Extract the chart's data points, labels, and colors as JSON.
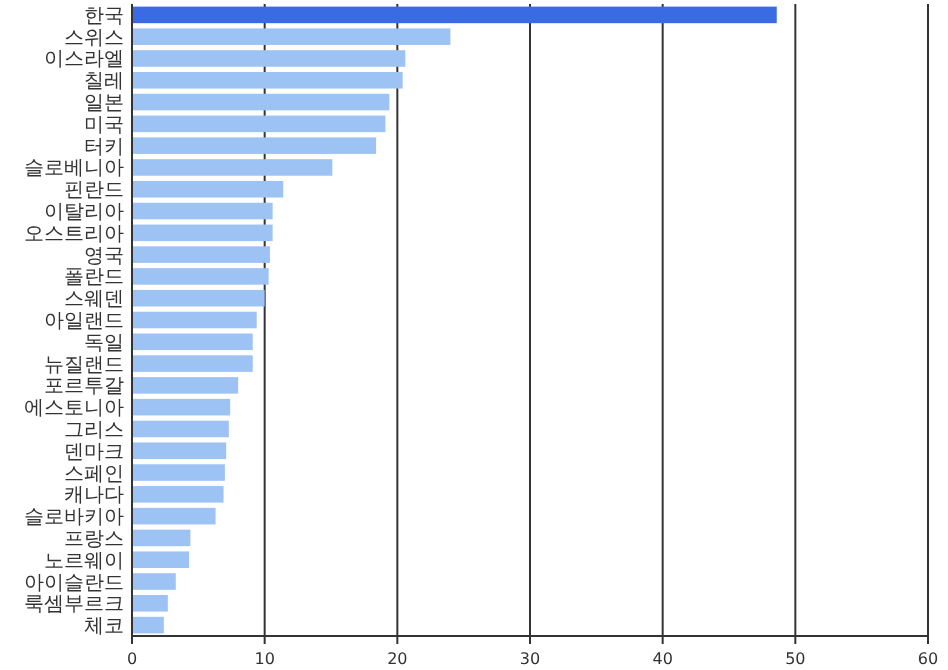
{
  "chart_data": {
    "type": "bar",
    "orientation": "horizontal",
    "categories": [
      "한국",
      "스위스",
      "이스라엘",
      "칠레",
      "일본",
      "미국",
      "터키",
      "슬로베니아",
      "핀란드",
      "이탈리아",
      "오스트리아",
      "영국",
      "폴란드",
      "스웨덴",
      "아일랜드",
      "독일",
      "뉴질랜드",
      "포르투갈",
      "에스토니아",
      "그리스",
      "덴마크",
      "스페인",
      "캐나다",
      "슬로바키아",
      "프랑스",
      "노르웨이",
      "아이슬란드",
      "룩셈부르크",
      "체코"
    ],
    "values": [
      48.6,
      24.0,
      20.6,
      20.4,
      19.4,
      19.1,
      18.4,
      15.1,
      11.4,
      10.6,
      10.6,
      10.4,
      10.3,
      10.0,
      9.4,
      9.1,
      9.1,
      8.0,
      7.4,
      7.3,
      7.1,
      7.0,
      6.9,
      6.3,
      4.4,
      4.3,
      3.3,
      2.7,
      2.4
    ],
    "colors": [
      "#3a6be4",
      "#9dc3f5",
      "#9dc3f5",
      "#9dc3f5",
      "#9dc3f5",
      "#9dc3f5",
      "#9dc3f5",
      "#9dc3f5",
      "#9dc3f5",
      "#9dc3f5",
      "#9dc3f5",
      "#9dc3f5",
      "#9dc3f5",
      "#9dc3f5",
      "#9dc3f5",
      "#9dc3f5",
      "#9dc3f5",
      "#9dc3f5",
      "#9dc3f5",
      "#9dc3f5",
      "#9dc3f5",
      "#9dc3f5",
      "#9dc3f5",
      "#9dc3f5",
      "#9dc3f5",
      "#9dc3f5",
      "#9dc3f5",
      "#9dc3f5",
      "#9dc3f5"
    ],
    "xlim": [
      0,
      60
    ],
    "xticks": [
      0,
      10,
      20,
      30,
      40,
      50,
      60
    ],
    "grid": "x"
  }
}
